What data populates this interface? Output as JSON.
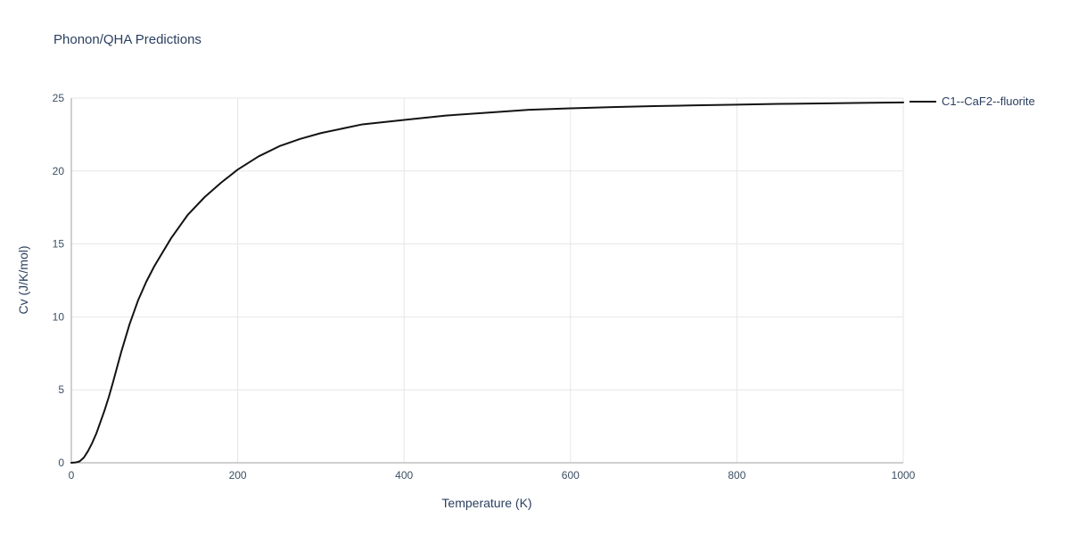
{
  "page": {
    "title": "Phonon/QHA Predictions"
  },
  "colors": {
    "title_text": "#2a3f5f",
    "tick_text": "#3b4f63",
    "axis_line": "#a0a0a0",
    "grid_line": "#e6e6e6",
    "series_line": "#131313",
    "background": "#ffffff"
  },
  "chart_data": {
    "type": "line",
    "title": "Phonon/QHA Predictions",
    "xlabel": "Temperature (K)",
    "ylabel": "Cv (J/K/mol)",
    "xlim": [
      0,
      1000
    ],
    "ylim": [
      0,
      25
    ],
    "xticks": [
      0,
      200,
      400,
      600,
      800,
      1000
    ],
    "yticks": [
      0,
      5,
      10,
      15,
      20,
      25
    ],
    "grid": true,
    "legend_position": "top-right-outside",
    "series": [
      {
        "name": "C1--CaF2--fluorite",
        "color": "#131313",
        "x": [
          0,
          5,
          10,
          15,
          20,
          25,
          30,
          35,
          40,
          45,
          50,
          60,
          70,
          80,
          90,
          100,
          120,
          140,
          160,
          180,
          200,
          225,
          250,
          275,
          300,
          350,
          400,
          450,
          500,
          550,
          600,
          650,
          700,
          750,
          800,
          850,
          900,
          950,
          1000
        ],
        "y": [
          0,
          0.02,
          0.1,
          0.35,
          0.8,
          1.35,
          2.0,
          2.8,
          3.6,
          4.5,
          5.5,
          7.6,
          9.5,
          11.1,
          12.4,
          13.5,
          15.4,
          17.0,
          18.2,
          19.2,
          20.1,
          21.0,
          21.7,
          22.2,
          22.6,
          23.2,
          23.5,
          23.8,
          24.0,
          24.2,
          24.3,
          24.38,
          24.45,
          24.5,
          24.55,
          24.6,
          24.63,
          24.67,
          24.7
        ]
      }
    ]
  }
}
